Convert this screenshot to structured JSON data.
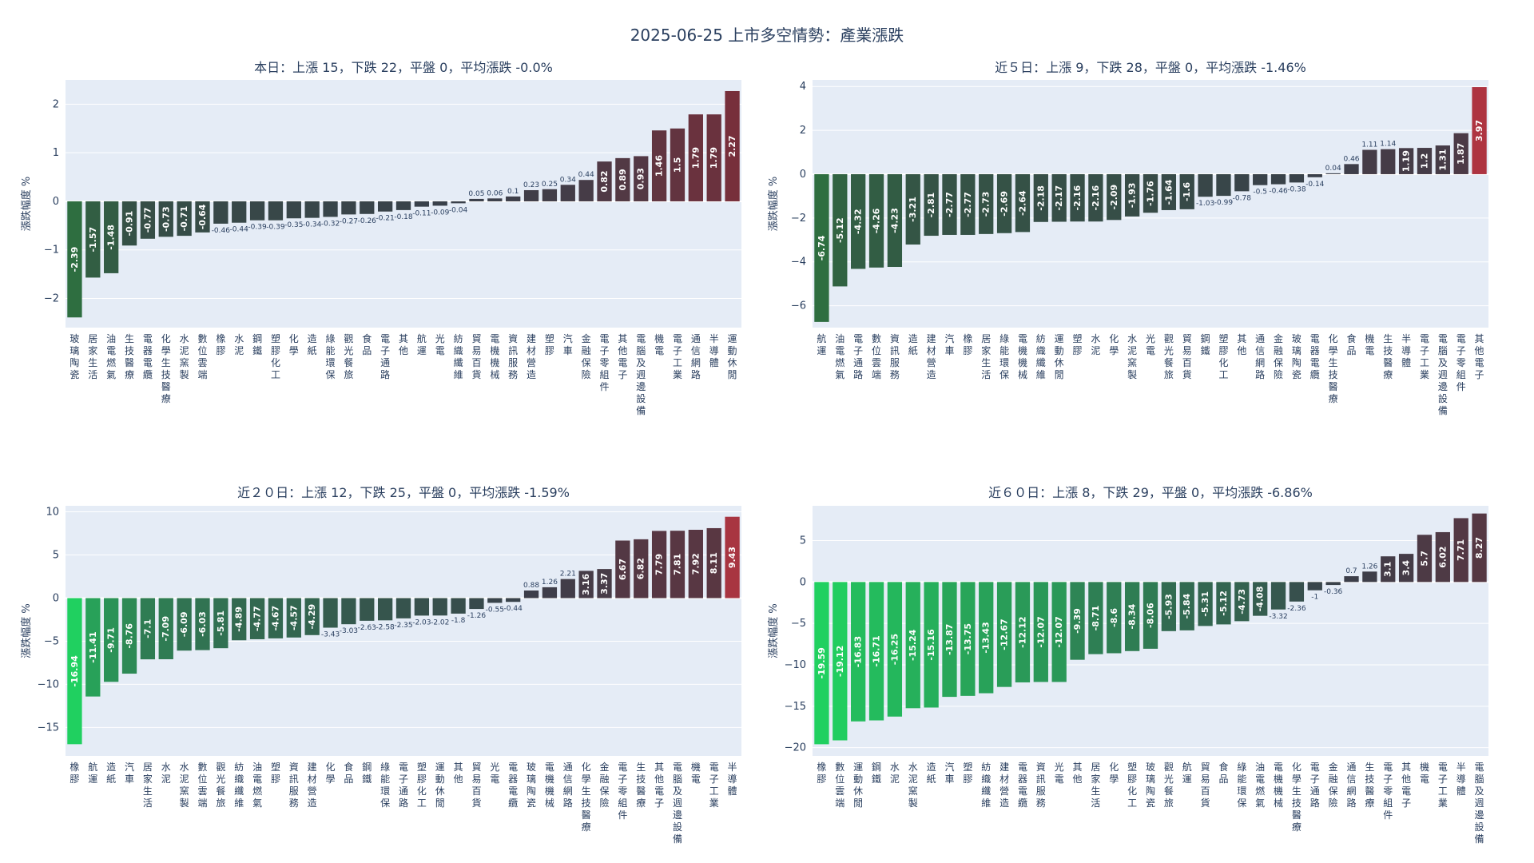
{
  "title": "2025-06-25 上市多空情勢：產業漲跌",
  "chart_data": [
    {
      "type": "bar",
      "title": "本日：上漲 15，下跌 22，平盤 0，平均漲跌 -0.0%",
      "ylabel": "漲跌幅度 %",
      "ylim": [
        -2.6,
        2.5
      ],
      "yticks": [
        -2,
        -1,
        0,
        1,
        2
      ],
      "categories": [
        "玻璃陶瓷",
        "居家生活",
        "油電燃氣",
        "生技醫療",
        "電器電纜",
        "化學生技醫療",
        "水泥窯製",
        "數位雲端",
        "橡膠",
        "水泥",
        "鋼鐵",
        "塑膠化工",
        "化學",
        "造紙",
        "綠能環保",
        "觀光餐旅",
        "食品",
        "電子通路",
        "其他",
        "航運",
        "光電",
        "紡織纖維",
        "貿易百貨",
        "電機機械",
        "資訊服務",
        "建材營造",
        "塑膠",
        "汽車",
        "金融保險",
        "電子零組件",
        "其他電子",
        "電腦及週邊設備",
        "機電",
        "電子工業",
        "通信網路",
        "半導體",
        "運動休閒"
      ],
      "values": [
        -2.39,
        -1.57,
        -1.48,
        -0.91,
        -0.77,
        -0.73,
        -0.71,
        -0.64,
        -0.46,
        -0.44,
        -0.39,
        -0.39,
        -0.35,
        -0.34,
        -0.32,
        -0.27,
        -0.26,
        -0.21,
        -0.18,
        -0.11,
        -0.09,
        -0.04,
        0.05,
        0.06,
        0.1,
        0.23,
        0.25,
        0.34,
        0.44,
        0.82,
        0.89,
        0.93,
        1.46,
        1.5,
        1.79,
        1.79,
        2.27
      ]
    },
    {
      "type": "bar",
      "title": "近５日：上漲 9，下跌 28，平盤 0，平均漲跌 -1.46%",
      "ylabel": "漲跌幅度 %",
      "ylim": [
        -7.0,
        4.3
      ],
      "yticks": [
        -6,
        -4,
        -2,
        0,
        2,
        4
      ],
      "categories": [
        "航運",
        "油電燃氣",
        "電子通路",
        "數位雲端",
        "資訊服務",
        "造紙",
        "建材營造",
        "汽車",
        "橡膠",
        "居家生活",
        "綠能環保",
        "電機機械",
        "紡織纖維",
        "運動休閒",
        "塑膠",
        "水泥",
        "化學",
        "水泥窯製",
        "光電",
        "觀光餐旅",
        "貿易百貨",
        "鋼鐵",
        "塑膠化工",
        "其他",
        "通信網路",
        "金融保險",
        "玻璃陶瓷",
        "電器電纜",
        "化學生技醫療",
        "食品",
        "機電",
        "生技醫療",
        "半導體",
        "電子工業",
        "電腦及週邊設備",
        "電子零組件",
        "其他電子"
      ],
      "values": [
        -6.74,
        -5.12,
        -4.32,
        -4.26,
        -4.23,
        -3.21,
        -2.81,
        -2.77,
        -2.77,
        -2.73,
        -2.69,
        -2.64,
        -2.18,
        -2.17,
        -2.16,
        -2.16,
        -2.09,
        -1.93,
        -1.76,
        -1.64,
        -1.6,
        -1.03,
        -0.99,
        -0.78,
        -0.5,
        -0.46,
        -0.38,
        -0.14,
        0.04,
        0.46,
        1.11,
        1.14,
        1.19,
        1.2,
        1.31,
        1.87,
        3.97
      ]
    },
    {
      "type": "bar",
      "title": "近２０日：上漲 12，下跌 25，平盤 0，平均漲跌 -1.59%",
      "ylabel": "漲跌幅度 %",
      "ylim": [
        -18.3,
        10.7
      ],
      "yticks": [
        -15,
        -10,
        -5,
        0,
        5,
        10
      ],
      "categories": [
        "橡膠",
        "航運",
        "造紙",
        "汽車",
        "居家生活",
        "水泥",
        "水泥窯製",
        "數位雲端",
        "觀光餐旅",
        "紡織纖維",
        "油電燃氣",
        "塑膠",
        "資訊服務",
        "建材營造",
        "化學",
        "食品",
        "鋼鐵",
        "綠能環保",
        "電子通路",
        "塑膠化工",
        "運動休閒",
        "其他",
        "貿易百貨",
        "光電",
        "電器電纜",
        "玻璃陶瓷",
        "電機機械",
        "通信網路",
        "化學生技醫療",
        "金融保險",
        "電子零組件",
        "生技醫療",
        "其他電子",
        "電腦及週邊設備",
        "機電",
        "電子工業",
        "半導體"
      ],
      "values": [
        -16.94,
        -11.41,
        -9.71,
        -8.76,
        -7.1,
        -7.09,
        -6.09,
        -6.03,
        -5.81,
        -4.89,
        -4.77,
        -4.67,
        -4.57,
        -4.29,
        -3.43,
        -3.03,
        -2.63,
        -2.58,
        -2.35,
        -2.03,
        -2.02,
        -1.8,
        -1.26,
        -0.55,
        -0.44,
        0.88,
        1.26,
        2.21,
        3.16,
        3.37,
        6.67,
        6.82,
        7.79,
        7.81,
        7.92,
        8.11,
        9.43
      ]
    },
    {
      "type": "bar",
      "title": "近６０日：上漲 8，下跌 29，平盤 0，平均漲跌 -6.86%",
      "ylabel": "漲跌幅度 %",
      "ylim": [
        -21.0,
        9.2
      ],
      "yticks": [
        -20,
        -15,
        -10,
        -5,
        0,
        5
      ],
      "categories": [
        "橡膠",
        "數位雲端",
        "運動休閒",
        "鋼鐵",
        "水泥",
        "水泥窯製",
        "造紙",
        "汽車",
        "塑膠",
        "紡織纖維",
        "建材營造",
        "電器電纜",
        "資訊服務",
        "光電",
        "其他",
        "居家生活",
        "化學",
        "塑膠化工",
        "玻璃陶瓷",
        "觀光餐旅",
        "航運",
        "貿易百貨",
        "食品",
        "綠能環保",
        "油電燃氣",
        "電機機械",
        "化學生技醫療",
        "電子通路",
        "金融保險",
        "通信網路",
        "生技醫療",
        "電子零組件",
        "其他電子",
        "機電",
        "電子工業",
        "半導體",
        "電腦及週邊設備"
      ],
      "values": [
        -19.59,
        -19.12,
        -16.83,
        -16.71,
        -16.25,
        -15.24,
        -15.16,
        -13.87,
        -13.75,
        -13.43,
        -12.67,
        -12.12,
        -12.07,
        -12.07,
        -9.39,
        -8.71,
        -8.6,
        -8.34,
        -8.06,
        -5.93,
        -5.84,
        -5.31,
        -5.12,
        -4.73,
        -4.08,
        -3.32,
        -2.36,
        -1.0,
        -0.36,
        0.7,
        1.26,
        3.1,
        3.4,
        5.7,
        6.02,
        7.71,
        8.27
      ]
    }
  ]
}
